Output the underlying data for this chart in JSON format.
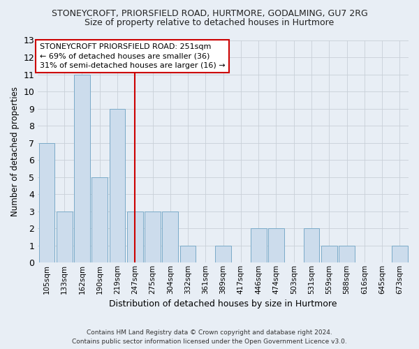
{
  "title1": "STONEYCROFT, PRIORSFIELD ROAD, HURTMORE, GODALMING, GU7 2RG",
  "title2": "Size of property relative to detached houses in Hurtmore",
  "xlabel": "Distribution of detached houses by size in Hurtmore",
  "ylabel": "Number of detached properties",
  "categories": [
    "105sqm",
    "133sqm",
    "162sqm",
    "190sqm",
    "219sqm",
    "247sqm",
    "275sqm",
    "304sqm",
    "332sqm",
    "361sqm",
    "389sqm",
    "417sqm",
    "446sqm",
    "474sqm",
    "503sqm",
    "531sqm",
    "559sqm",
    "588sqm",
    "616sqm",
    "645sqm",
    "673sqm"
  ],
  "values": [
    7,
    3,
    11,
    5,
    9,
    3,
    3,
    3,
    1,
    0,
    1,
    0,
    2,
    2,
    0,
    2,
    1,
    1,
    0,
    0,
    1
  ],
  "bar_color": "#ccdcec",
  "bar_edge_color": "#7aaac8",
  "grid_color": "#c8d0d8",
  "background_color": "#e8eef5",
  "redline_x": 5,
  "annotation_lines": [
    "STONEYCROFT PRIORSFIELD ROAD: 251sqm",
    "← 69% of detached houses are smaller (36)",
    "31% of semi-detached houses are larger (16) →"
  ],
  "annotation_box_color": "#ffffff",
  "annotation_box_edge_color": "#cc0000",
  "redline_color": "#cc0000",
  "footer_line1": "Contains HM Land Registry data © Crown copyright and database right 2024.",
  "footer_line2": "Contains public sector information licensed under the Open Government Licence v3.0.",
  "ylim": [
    0,
    13
  ],
  "yticks": [
    0,
    1,
    2,
    3,
    4,
    5,
    6,
    7,
    8,
    9,
    10,
    11,
    12,
    13
  ],
  "title1_fontsize": 9,
  "title2_fontsize": 9,
  "ylabel_fontsize": 8.5,
  "xlabel_fontsize": 9,
  "ann_fontsize": 8,
  "footer_fontsize": 6.5
}
